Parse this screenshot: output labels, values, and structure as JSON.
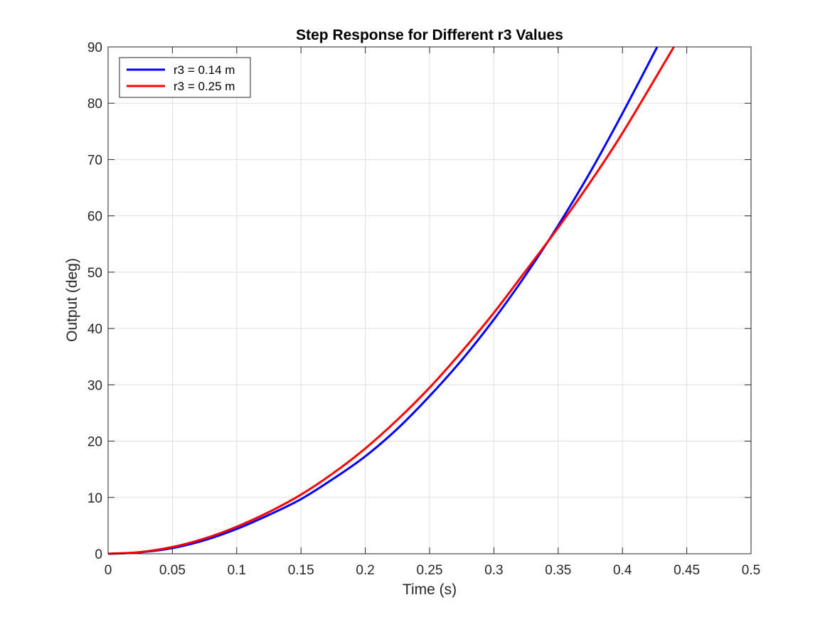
{
  "chart_data": {
    "type": "line",
    "title": "Step Response for Different r3 Values",
    "xlabel": "Time (s)",
    "ylabel": "Output (deg)",
    "xlim": [
      0,
      0.5
    ],
    "ylim": [
      0,
      90
    ],
    "xticks": [
      0,
      0.05,
      0.1,
      0.15,
      0.2,
      0.25,
      0.3,
      0.35,
      0.4,
      0.45,
      0.5
    ],
    "xtick_labels": [
      "0",
      "0.05",
      "0.1",
      "0.15",
      "0.2",
      "0.25",
      "0.3",
      "0.35",
      "0.4",
      "0.45",
      "0.5"
    ],
    "yticks": [
      0,
      10,
      20,
      30,
      40,
      50,
      60,
      70,
      80,
      90
    ],
    "ytick_labels": [
      "0",
      "10",
      "20",
      "30",
      "40",
      "50",
      "60",
      "70",
      "80",
      "90"
    ],
    "grid": true,
    "legend_position": "top-left",
    "series": [
      {
        "name": "r3 = 0.14 m",
        "color": "#0000ff",
        "x": [
          0,
          0.025,
          0.05,
          0.075,
          0.1,
          0.125,
          0.15,
          0.175,
          0.2,
          0.225,
          0.25,
          0.275,
          0.3,
          0.325,
          0.35,
          0.375,
          0.4,
          0.427
        ],
        "y": [
          0,
          0.25,
          1.0,
          2.4,
          4.4,
          6.9,
          9.7,
          13.3,
          17.3,
          22.2,
          28.0,
          34.4,
          41.6,
          49.6,
          58.3,
          67.8,
          78.2,
          90.0
        ]
      },
      {
        "name": "r3 = 0.25 m",
        "color": "#ff0000",
        "x": [
          0,
          0.025,
          0.05,
          0.075,
          0.1,
          0.125,
          0.15,
          0.175,
          0.2,
          0.225,
          0.25,
          0.275,
          0.3,
          0.325,
          0.35,
          0.375,
          0.4,
          0.44
        ],
        "y": [
          0,
          0.3,
          1.2,
          2.7,
          4.8,
          7.4,
          10.5,
          14.3,
          18.7,
          23.8,
          29.5,
          35.9,
          42.8,
          50.3,
          57.9,
          66.0,
          74.7,
          90.0
        ]
      }
    ]
  }
}
